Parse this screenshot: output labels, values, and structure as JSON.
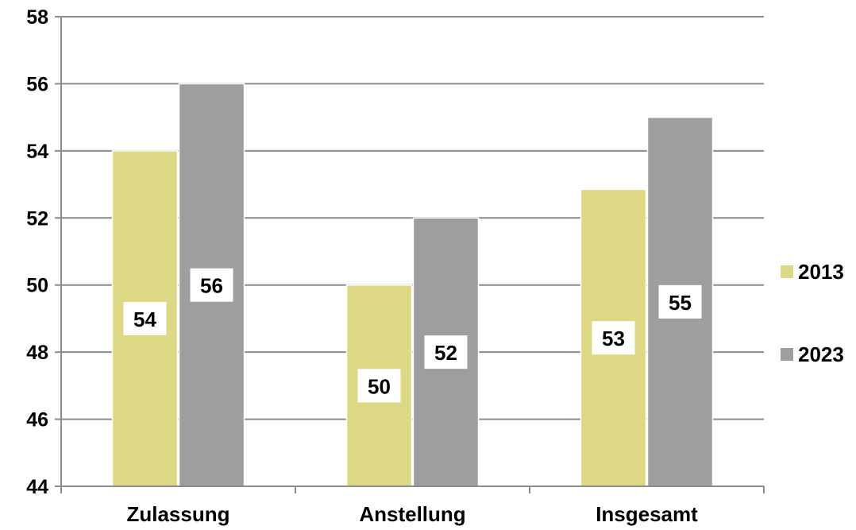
{
  "chart_data": {
    "type": "bar",
    "categories": [
      "Zulassung",
      "Anstellung",
      "Insgesamt"
    ],
    "series": [
      {
        "name": "2013",
        "values": [
          54,
          50,
          52.85
        ],
        "labels": [
          "54",
          "50",
          "53"
        ],
        "color": "#dcd883"
      },
      {
        "name": "2023",
        "values": [
          56,
          52,
          55
        ],
        "labels": [
          "56",
          "52",
          "55"
        ],
        "color": "#9d9e9d"
      }
    ],
    "ylim": [
      44,
      58
    ],
    "yticks": [
      "44",
      "46",
      "48",
      "50",
      "52",
      "54",
      "56",
      "58"
    ],
    "grid": true,
    "legend": "right",
    "gridline_color": "#8c8c8c"
  }
}
